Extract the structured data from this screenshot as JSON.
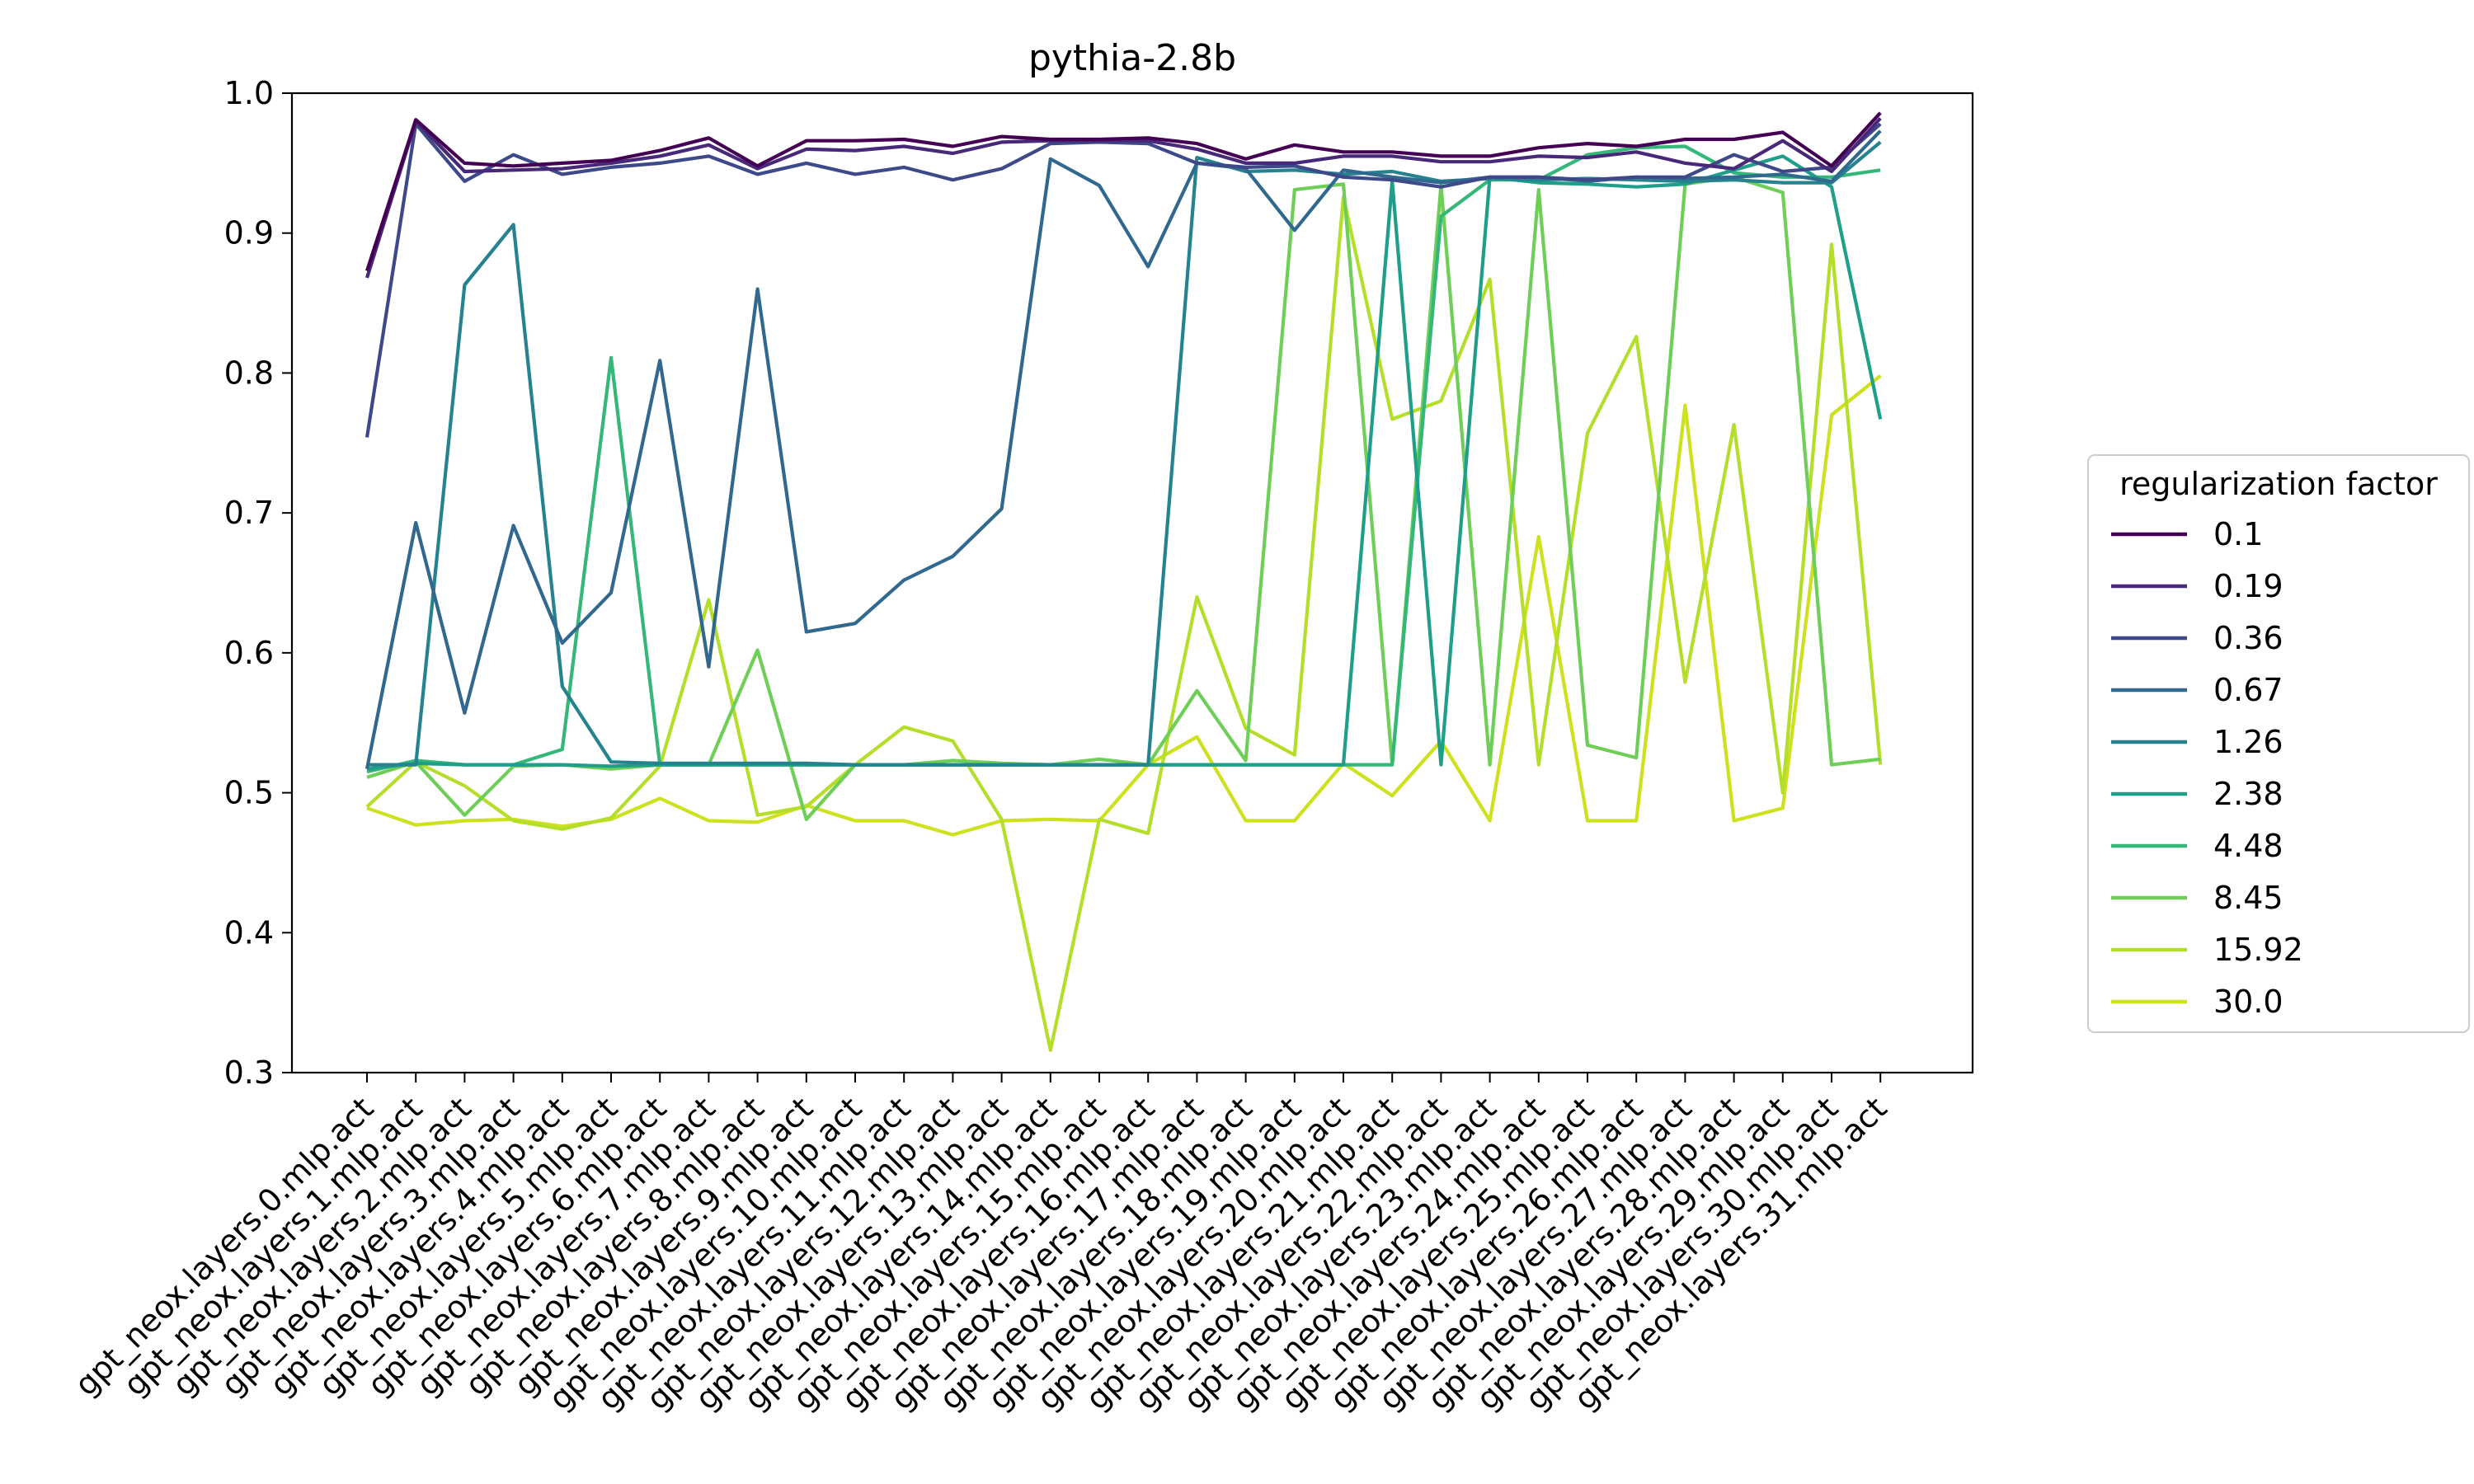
{
  "chart_data": {
    "type": "line",
    "title": "pythia-2.8b",
    "xlabel": "",
    "ylabel": "",
    "ylim": [
      0.3,
      1.0
    ],
    "yticks": [
      "0.3",
      "0.4",
      "0.5",
      "0.6",
      "0.7",
      "0.8",
      "0.9",
      "1.0"
    ],
    "grid": false,
    "legend": {
      "title": "regularization factor",
      "placement": "outside-right"
    },
    "x": [
      "gpt_neox.layers.0.mlp.act",
      "gpt_neox.layers.1.mlp.act",
      "gpt_neox.layers.2.mlp.act",
      "gpt_neox.layers.3.mlp.act",
      "gpt_neox.layers.4.mlp.act",
      "gpt_neox.layers.5.mlp.act",
      "gpt_neox.layers.6.mlp.act",
      "gpt_neox.layers.7.mlp.act",
      "gpt_neox.layers.8.mlp.act",
      "gpt_neox.layers.9.mlp.act",
      "gpt_neox.layers.10.mlp.act",
      "gpt_neox.layers.11.mlp.act",
      "gpt_neox.layers.12.mlp.act",
      "gpt_neox.layers.13.mlp.act",
      "gpt_neox.layers.14.mlp.act",
      "gpt_neox.layers.15.mlp.act",
      "gpt_neox.layers.16.mlp.act",
      "gpt_neox.layers.17.mlp.act",
      "gpt_neox.layers.18.mlp.act",
      "gpt_neox.layers.19.mlp.act",
      "gpt_neox.layers.20.mlp.act",
      "gpt_neox.layers.21.mlp.act",
      "gpt_neox.layers.22.mlp.act",
      "gpt_neox.layers.23.mlp.act",
      "gpt_neox.layers.24.mlp.act",
      "gpt_neox.layers.25.mlp.act",
      "gpt_neox.layers.26.mlp.act",
      "gpt_neox.layers.27.mlp.act",
      "gpt_neox.layers.28.mlp.act",
      "gpt_neox.layers.29.mlp.act",
      "gpt_neox.layers.30.mlp.act",
      "gpt_neox.layers.31.mlp.act"
    ],
    "series": [
      {
        "name": "0.1",
        "color": "#440154",
        "values": [
          0.873,
          0.981,
          0.95,
          0.948,
          0.95,
          0.952,
          0.959,
          0.968,
          0.948,
          0.966,
          0.966,
          0.967,
          0.962,
          0.969,
          0.967,
          0.967,
          0.968,
          0.964,
          0.953,
          0.963,
          0.958,
          0.958,
          0.955,
          0.955,
          0.961,
          0.964,
          0.962,
          0.967,
          0.967,
          0.972,
          0.948,
          0.986
        ]
      },
      {
        "name": "0.19",
        "color": "#482878",
        "values": [
          0.868,
          0.98,
          0.944,
          0.945,
          0.946,
          0.95,
          0.955,
          0.963,
          0.946,
          0.96,
          0.959,
          0.962,
          0.957,
          0.965,
          0.966,
          0.966,
          0.966,
          0.96,
          0.95,
          0.95,
          0.955,
          0.955,
          0.951,
          0.951,
          0.955,
          0.954,
          0.958,
          0.95,
          0.946,
          0.966,
          0.944,
          0.982
        ]
      },
      {
        "name": "0.36",
        "color": "#3e4989",
        "values": [
          0.754,
          0.978,
          0.937,
          0.956,
          0.942,
          0.947,
          0.95,
          0.955,
          0.942,
          0.95,
          0.942,
          0.947,
          0.938,
          0.946,
          0.964,
          0.965,
          0.964,
          0.95,
          0.947,
          0.948,
          0.94,
          0.938,
          0.933,
          0.94,
          0.94,
          0.938,
          0.94,
          0.94,
          0.956,
          0.944,
          0.947,
          0.978
        ]
      },
      {
        "name": "0.67",
        "color": "#31688e",
        "values": [
          0.517,
          0.693,
          0.557,
          0.691,
          0.607,
          0.643,
          0.809,
          0.59,
          0.86,
          0.615,
          0.621,
          0.652,
          0.669,
          0.703,
          0.953,
          0.934,
          0.876,
          0.95,
          0.946,
          0.902,
          0.945,
          0.94,
          0.936,
          0.94,
          0.94,
          0.937,
          0.94,
          0.939,
          0.94,
          0.942,
          0.937,
          0.973
        ]
      },
      {
        "name": "1.26",
        "color": "#26828e",
        "values": [
          0.52,
          0.52,
          0.863,
          0.906,
          0.576,
          0.522,
          0.521,
          0.521,
          0.521,
          0.521,
          0.52,
          0.52,
          0.52,
          0.52,
          0.52,
          0.52,
          0.52,
          0.954,
          0.944,
          0.945,
          0.942,
          0.944,
          0.937,
          0.939,
          0.938,
          0.939,
          0.938,
          0.937,
          0.938,
          0.936,
          0.936,
          0.965
        ]
      },
      {
        "name": "2.38",
        "color": "#1f9e89",
        "values": [
          0.517,
          0.521,
          0.52,
          0.52,
          0.52,
          0.519,
          0.52,
          0.52,
          0.52,
          0.52,
          0.52,
          0.52,
          0.52,
          0.52,
          0.52,
          0.52,
          0.52,
          0.52,
          0.52,
          0.52,
          0.52,
          0.937,
          0.52,
          0.94,
          0.936,
          0.935,
          0.933,
          0.935,
          0.945,
          0.955,
          0.933,
          0.767
        ]
      },
      {
        "name": "4.48",
        "color": "#35b779",
        "values": [
          0.515,
          0.523,
          0.52,
          0.52,
          0.531,
          0.811,
          0.52,
          0.52,
          0.52,
          0.52,
          0.52,
          0.52,
          0.52,
          0.52,
          0.52,
          0.52,
          0.52,
          0.52,
          0.52,
          0.52,
          0.52,
          0.52,
          0.912,
          0.938,
          0.938,
          0.956,
          0.961,
          0.962,
          0.943,
          0.94,
          0.94,
          0.945
        ]
      },
      {
        "name": "8.45",
        "color": "#6ece58",
        "values": [
          0.511,
          0.522,
          0.484,
          0.519,
          0.52,
          0.517,
          0.52,
          0.52,
          0.602,
          0.481,
          0.52,
          0.52,
          0.523,
          0.521,
          0.52,
          0.524,
          0.52,
          0.573,
          0.523,
          0.931,
          0.935,
          0.52,
          0.934,
          0.52,
          0.931,
          0.534,
          0.525,
          0.935,
          0.94,
          0.929,
          0.52,
          0.524
        ]
      },
      {
        "name": "15.92",
        "color": "#b5de2b",
        "values": [
          0.49,
          0.522,
          0.505,
          0.48,
          0.474,
          0.482,
          0.519,
          0.638,
          0.484,
          0.49,
          0.52,
          0.547,
          0.537,
          0.481,
          0.316,
          0.481,
          0.471,
          0.64,
          0.546,
          0.527,
          0.926,
          0.767,
          0.78,
          0.867,
          0.52,
          0.757,
          0.826,
          0.579,
          0.763,
          0.5,
          0.892,
          0.52
        ]
      },
      {
        "name": "30.0",
        "color": "#cde11d",
        "values": [
          0.489,
          0.477,
          0.48,
          0.481,
          0.476,
          0.481,
          0.496,
          0.48,
          0.479,
          0.491,
          0.48,
          0.48,
          0.47,
          0.48,
          0.481,
          0.48,
          0.52,
          0.54,
          0.48,
          0.48,
          0.521,
          0.498,
          0.537,
          0.48,
          0.683,
          0.48,
          0.48,
          0.777,
          0.48,
          0.489,
          0.77,
          0.798
        ]
      }
    ]
  }
}
